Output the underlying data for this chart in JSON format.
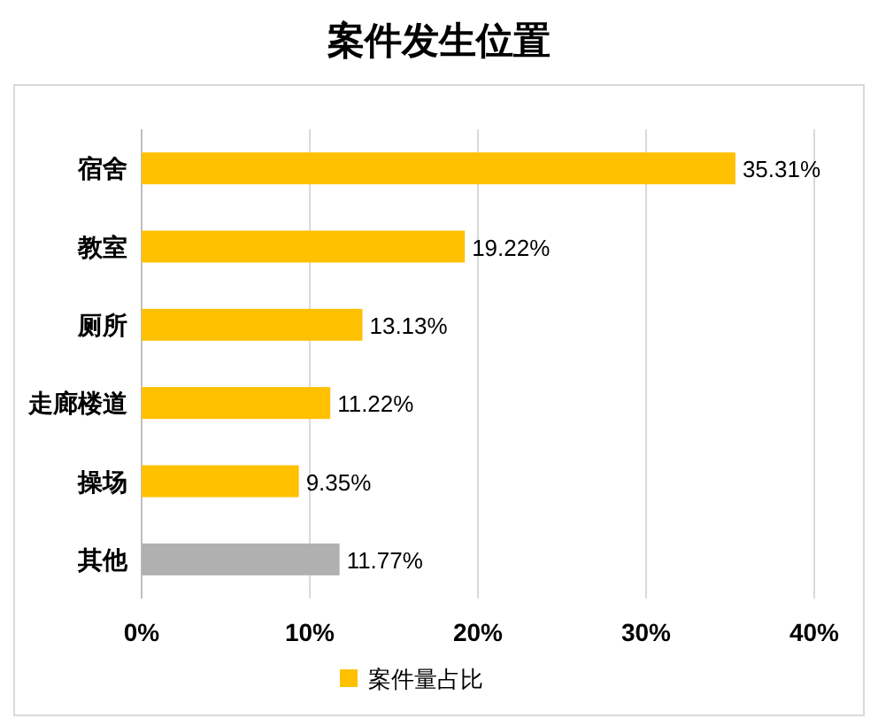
{
  "chart_data": {
    "type": "bar",
    "orientation": "horizontal",
    "title": "案件发生位置",
    "categories": [
      "宿舍",
      "教室",
      "厕所",
      "走廊楼道",
      "操场",
      "其他"
    ],
    "series": [
      {
        "name": "案件量占比",
        "color": "#ffc000",
        "colors": [
          "#ffc000",
          "#ffc000",
          "#ffc000",
          "#ffc000",
          "#ffc000",
          "#b0b0b0"
        ],
        "values": [
          35.31,
          19.22,
          13.13,
          11.22,
          9.35,
          11.77
        ],
        "value_labels": [
          "35.31%",
          "19.22%",
          "13.13%",
          "11.22%",
          "9.35%",
          "11.77%"
        ]
      }
    ],
    "xlim": [
      0,
      40
    ],
    "xticks": [
      {
        "value": 0,
        "label": "0%"
      },
      {
        "value": 10,
        "label": "10%"
      },
      {
        "value": 20,
        "label": "20%"
      },
      {
        "value": 30,
        "label": "30%"
      },
      {
        "value": 40,
        "label": "40%"
      }
    ],
    "grid": "x",
    "legend": "bottom"
  }
}
